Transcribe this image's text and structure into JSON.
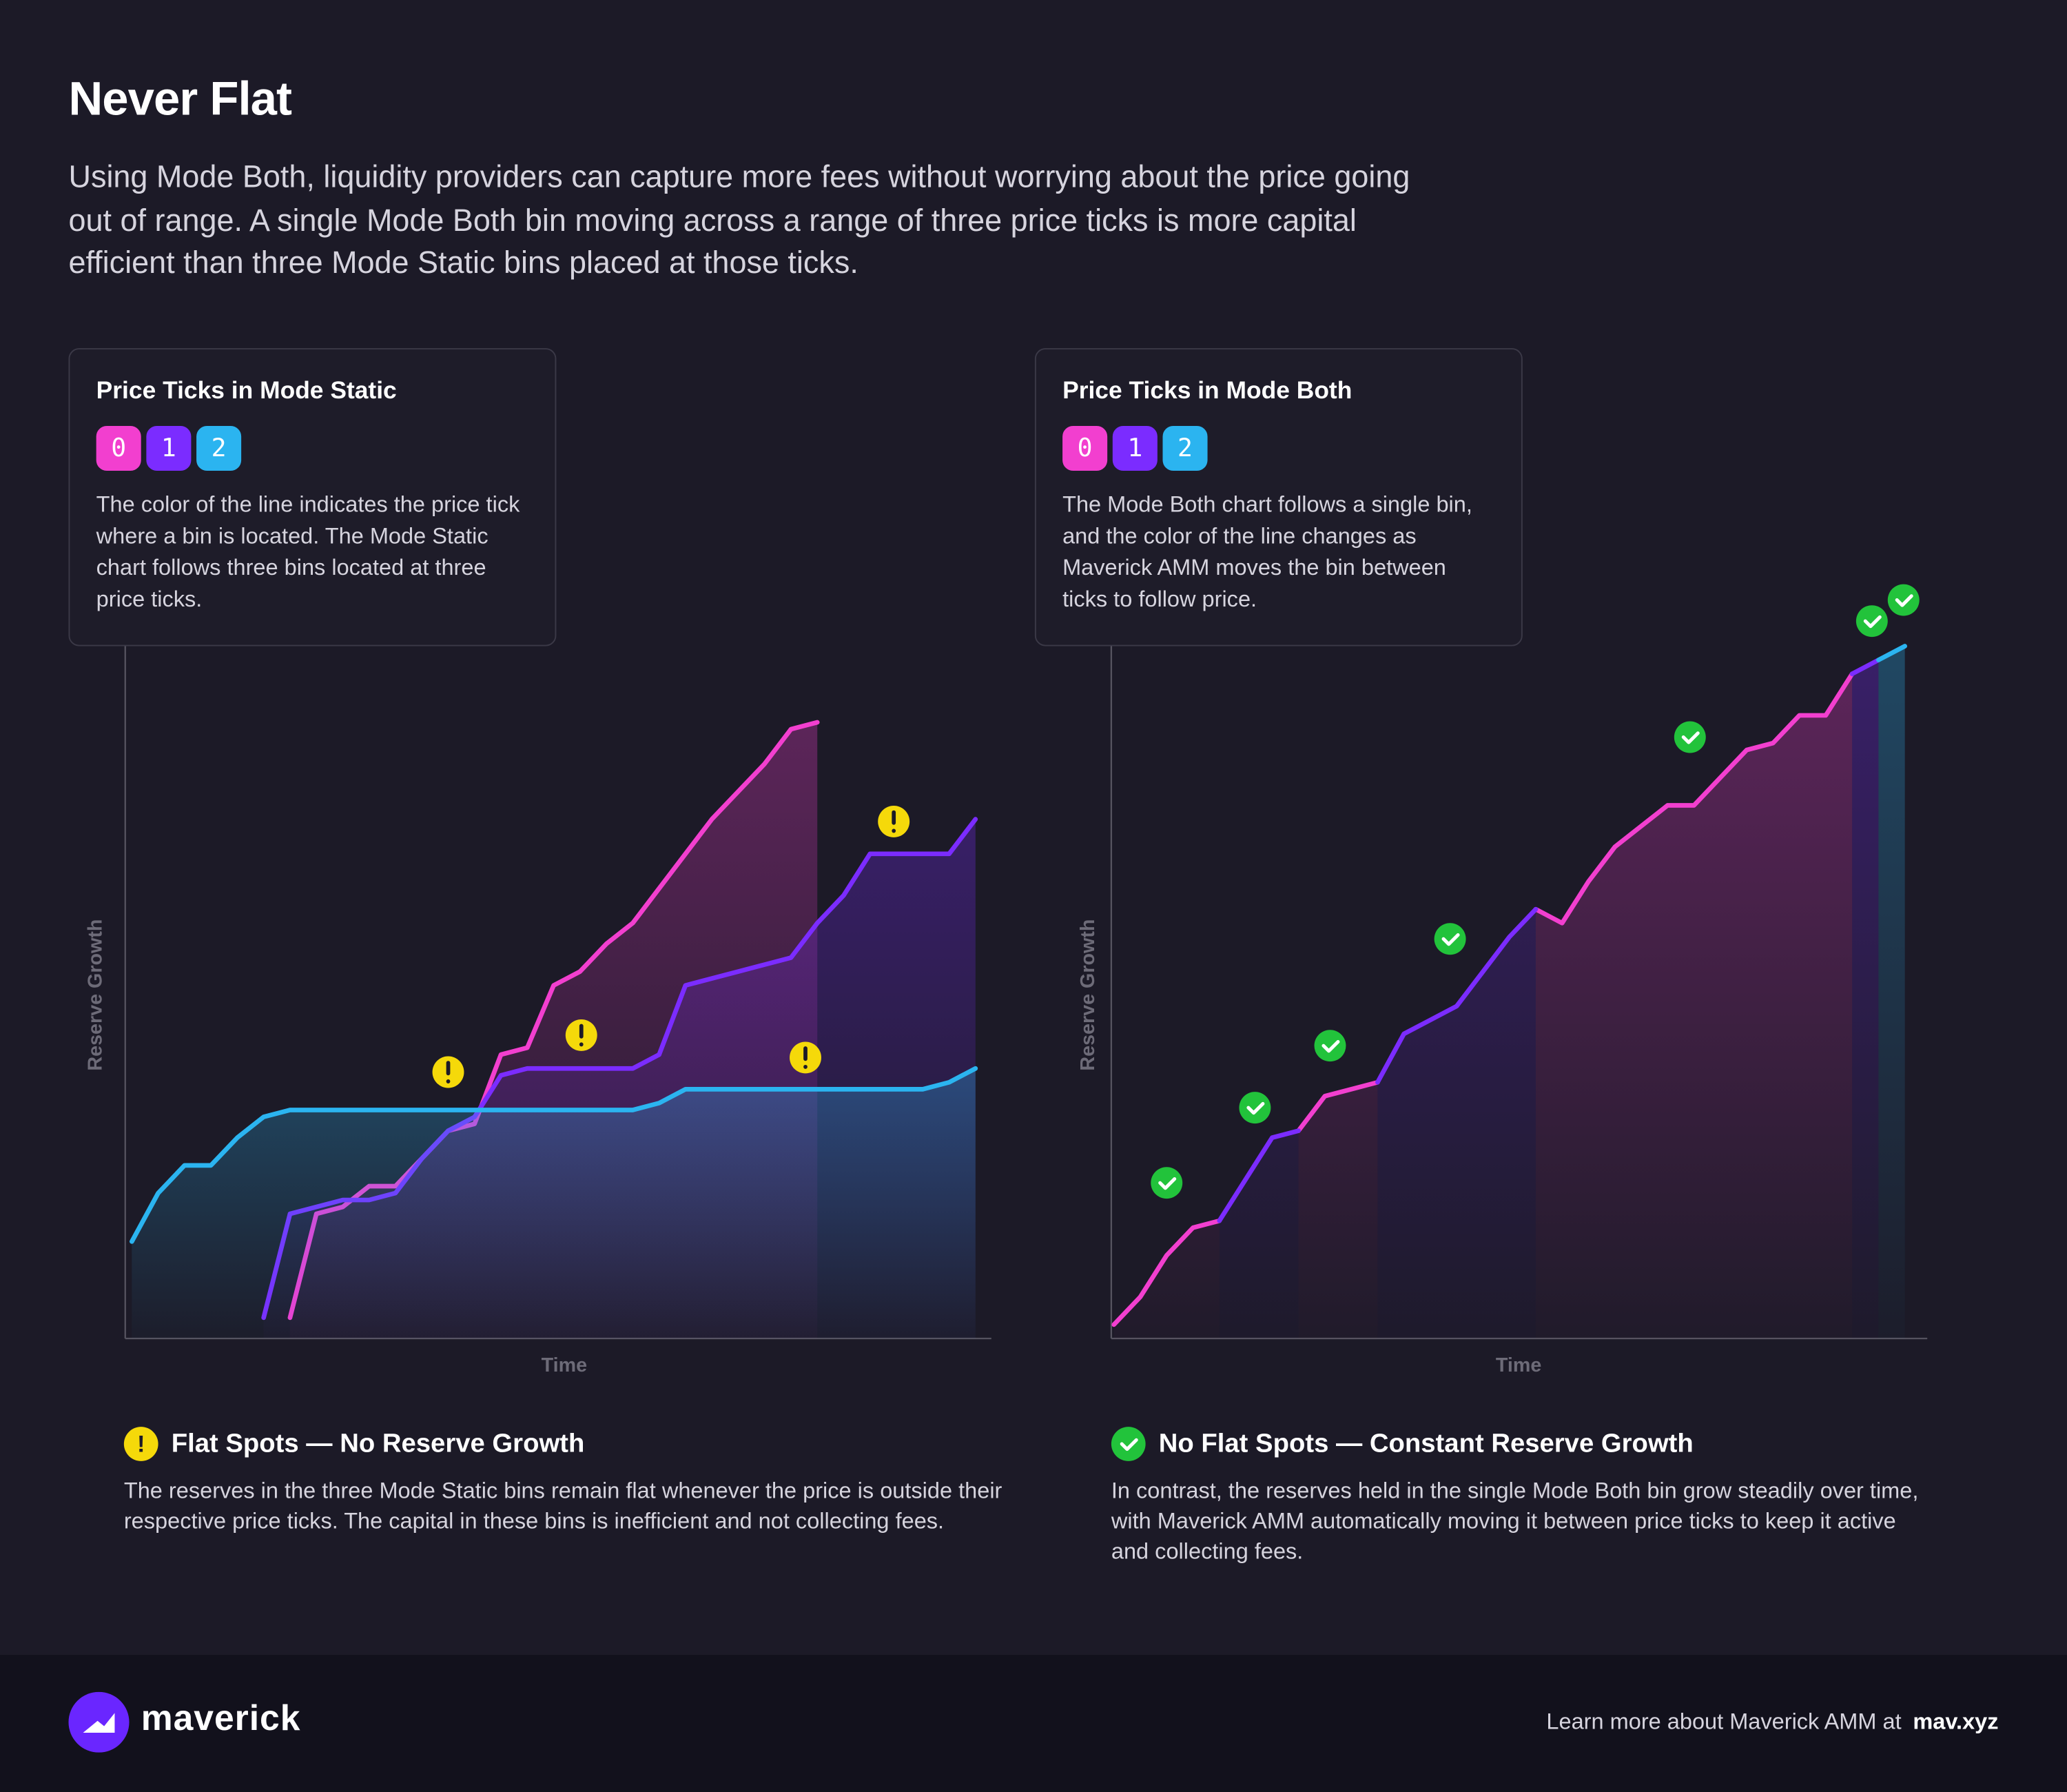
{
  "header": {
    "title": "Never Flat",
    "intro": "Using Mode Both, liquidity providers can capture more fees without worrying about the price going out of range. A single Mode Both bin moving across a range of three price ticks is more capital efficient than three Mode Static bins placed at those ticks."
  },
  "chart_data": [
    {
      "type": "line",
      "title": "Price Ticks in Mode Static",
      "description": "The color of the line indicates the price tick where a bin is located. The Mode Static chart follows three bins located at three price ticks.",
      "x_label": "Time",
      "y_label": "Reserve Growth",
      "ylim": [
        0,
        100
      ],
      "series": [
        {
          "name": "0",
          "color": "#f23fcf",
          "values": [
            null,
            null,
            null,
            null,
            null,
            null,
            3,
            18,
            19,
            22,
            22,
            26,
            30,
            31,
            41,
            42,
            51,
            53,
            57,
            60,
            65,
            70,
            75,
            79,
            83,
            88,
            89,
            null,
            null,
            null,
            null,
            null,
            null
          ]
        },
        {
          "name": "1",
          "color": "#7b2cff",
          "values": [
            null,
            null,
            null,
            null,
            null,
            3,
            18,
            19,
            20,
            20,
            21,
            26,
            30,
            32,
            38,
            39,
            39,
            39,
            39,
            39,
            41,
            51,
            52,
            53,
            54,
            55,
            60,
            64,
            70,
            70,
            70,
            70,
            75
          ]
        },
        {
          "name": "2",
          "color": "#2bb4f0",
          "values": [
            14,
            21,
            25,
            25,
            29,
            32,
            33,
            33,
            33,
            33,
            33,
            33,
            33,
            33,
            33,
            33,
            33,
            33,
            33,
            33,
            34,
            36,
            36,
            36,
            36,
            36,
            36,
            36,
            36,
            36,
            36,
            37,
            39
          ]
        }
      ],
      "note_title": "Flat Spots — No Reserve Growth",
      "note_text": "The reserves in the three Mode Static bins remain flat whenever the price is outside their respective price ticks. The capital in these bins is inefficient and not collecting fees."
    },
    {
      "type": "line",
      "title": "Price Ticks in Mode Both",
      "description": "The Mode Both chart follows a single bin, and the color of the line changes as Maverick AMM moves the bin between ticks to follow price.",
      "x_label": "Time",
      "y_label": "Reserve Growth",
      "ylim": [
        0,
        100
      ],
      "series": [
        {
          "name": "0",
          "color": "#f23fcf",
          "values": [
            2,
            6,
            12,
            16,
            17,
            null,
            null,
            30,
            35,
            36,
            37,
            null,
            null,
            null,
            null,
            null,
            62,
            60,
            66,
            71,
            74,
            77,
            77,
            81,
            85,
            86,
            90,
            90,
            96,
            null,
            null
          ]
        },
        {
          "name": "1",
          "color": "#7b2cff",
          "values": [
            null,
            null,
            null,
            null,
            17,
            23,
            29,
            30,
            null,
            null,
            37,
            44,
            46,
            48,
            53,
            58,
            62,
            null,
            null,
            null,
            null,
            null,
            null,
            null,
            null,
            null,
            null,
            null,
            96,
            98,
            null
          ]
        },
        {
          "name": "2",
          "color": "#2bb4f0",
          "values": [
            null,
            null,
            null,
            null,
            null,
            null,
            null,
            null,
            null,
            null,
            null,
            null,
            null,
            null,
            null,
            null,
            null,
            null,
            null,
            null,
            null,
            null,
            null,
            null,
            null,
            null,
            null,
            null,
            null,
            98,
            100
          ]
        }
      ],
      "note_title": "No Flat Spots — Constant Reserve Growth",
      "note_text": "In contrast, the reserves held in the single Mode Both bin grow steadily over time, with Maverick AMM automatically moving it between price ticks to keep it active and collecting fees."
    }
  ],
  "footer": {
    "brand": "maverick",
    "text": "Learn more about Maverick AMM at",
    "link": "mav.xyz"
  }
}
